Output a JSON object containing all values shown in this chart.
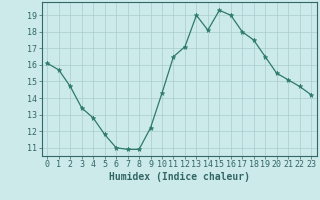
{
  "x": [
    0,
    1,
    2,
    3,
    4,
    5,
    6,
    7,
    8,
    9,
    10,
    11,
    12,
    13,
    14,
    15,
    16,
    17,
    18,
    19,
    20,
    21,
    22,
    23
  ],
  "y": [
    16.1,
    15.7,
    14.7,
    13.4,
    12.8,
    11.8,
    11.0,
    10.9,
    10.9,
    12.2,
    14.3,
    16.5,
    17.1,
    19.0,
    18.1,
    19.3,
    19.0,
    18.0,
    17.5,
    16.5,
    15.5,
    15.1,
    14.7,
    14.2
  ],
  "xlabel": "Humidex (Indice chaleur)",
  "bg_color": "#cceaea",
  "grid_color": "#aacccc",
  "line_color": "#2d7a6a",
  "marker_color": "#2d7a6a",
  "ylim": [
    10.5,
    19.8
  ],
  "xlim": [
    -0.5,
    23.5
  ],
  "yticks": [
    11,
    12,
    13,
    14,
    15,
    16,
    17,
    18,
    19
  ],
  "xticks": [
    0,
    1,
    2,
    3,
    4,
    5,
    6,
    7,
    8,
    9,
    10,
    11,
    12,
    13,
    14,
    15,
    16,
    17,
    18,
    19,
    20,
    21,
    22,
    23
  ],
  "xtick_labels": [
    "0",
    "1",
    "2",
    "3",
    "4",
    "5",
    "6",
    "7",
    "8",
    "9",
    "10",
    "11",
    "12",
    "13",
    "14",
    "15",
    "16",
    "17",
    "18",
    "19",
    "20",
    "21",
    "22",
    "23"
  ],
  "font_color": "#336666",
  "axis_fontsize": 6.0,
  "label_fontsize": 7.0
}
